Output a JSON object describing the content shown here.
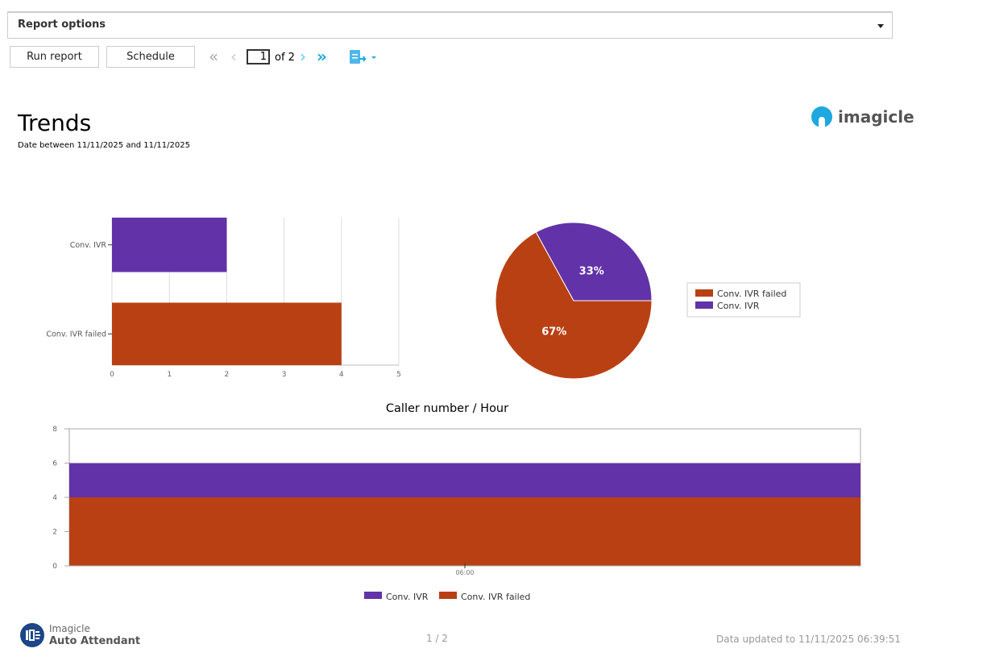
{
  "report_options": {
    "label": "Report options"
  },
  "toolbar": {
    "run_label": "Run report",
    "schedule_label": "Schedule",
    "page_current": "1",
    "page_of": "of 2",
    "icons": [
      "first-page-icon",
      "prev-page-icon",
      "next-page-icon",
      "last-page-icon",
      "export-icon"
    ]
  },
  "header": {
    "title": "Trends",
    "subtitle": "Date between 11/11/2025 and 11/11/2025",
    "logo_text": "imagicle"
  },
  "colors": {
    "ivr": "#6232a8",
    "failed": "#b94013",
    "link": "#1ea7e0"
  },
  "chart_data": [
    {
      "type": "bar",
      "orientation": "horizontal",
      "categories": [
        "Conv. IVR",
        "Conv. IVR failed"
      ],
      "values": [
        2,
        4
      ],
      "xlim": [
        0,
        5
      ],
      "xticks": [
        "0",
        "1",
        "2",
        "3",
        "4",
        "5"
      ],
      "grid": true
    },
    {
      "type": "pie",
      "slices": [
        {
          "name": "Conv. IVR failed",
          "value": 67,
          "label": "67%"
        },
        {
          "name": "Conv. IVR",
          "value": 33,
          "label": "33%"
        }
      ],
      "legend": [
        "Conv. IVR failed",
        "Conv. IVR"
      ],
      "legend_position": "right"
    },
    {
      "type": "area",
      "stacked": true,
      "title": "Caller number / Hour",
      "categories": [
        "06:00"
      ],
      "series": [
        {
          "name": "Conv. IVR failed",
          "values": [
            4
          ]
        },
        {
          "name": "Conv. IVR",
          "values": [
            2
          ]
        }
      ],
      "ylim": [
        0,
        8
      ],
      "yticks": [
        "0",
        "2",
        "4",
        "6",
        "8"
      ],
      "legend": [
        "Conv. IVR",
        "Conv. IVR failed"
      ],
      "legend_position": "bottom"
    }
  ],
  "footer": {
    "brand_top": "Imagicle",
    "brand_bottom": "Auto Attendant",
    "page": "1 / 2",
    "updated": "Data updated to 11/11/2025 06:39:51"
  }
}
